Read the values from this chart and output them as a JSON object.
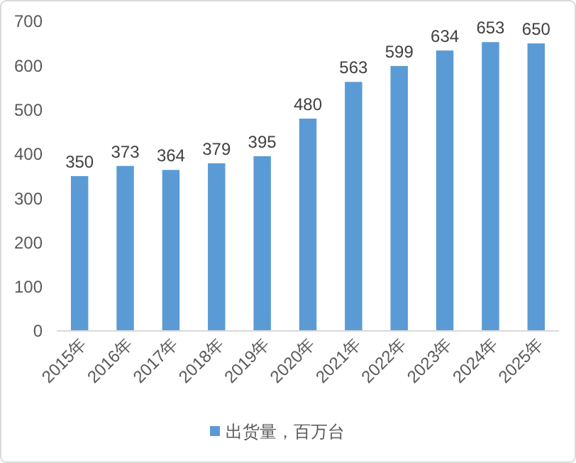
{
  "chart_data": {
    "type": "bar",
    "categories": [
      "2015年",
      "2016年",
      "2017年",
      "2018年",
      "2019年",
      "2020年",
      "2021年",
      "2022年",
      "2023年",
      "2024年",
      "2025年"
    ],
    "series": [
      {
        "name": "出货量，百万台",
        "color": "#5b9bd5",
        "values": [
          350,
          373,
          364,
          379,
          395,
          480,
          563,
          599,
          634,
          653,
          650
        ]
      }
    ],
    "ylim": [
      0,
      700
    ],
    "yticks": [
      0,
      100,
      200,
      300,
      400,
      500,
      600,
      700
    ],
    "grid": false,
    "legend": "bottom",
    "data_labels": true
  }
}
